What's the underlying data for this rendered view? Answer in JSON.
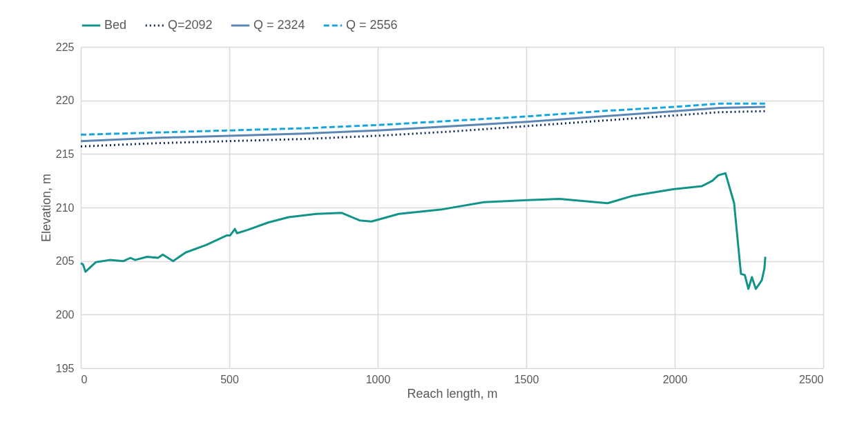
{
  "chart_data": {
    "type": "line",
    "xlabel": "Reach length, m",
    "ylabel": "Elevation, m",
    "xlim": [
      0,
      2500
    ],
    "xticks": [
      0,
      500,
      1000,
      1500,
      2000,
      2500
    ],
    "ylim": [
      195,
      225
    ],
    "yticks": [
      195,
      200,
      205,
      210,
      215,
      220,
      225
    ],
    "grid": true,
    "legend": "top",
    "marker": "none",
    "series": [
      {
        "name": "Bed",
        "color": "#119488",
        "line_style": "solid",
        "x": [
          0,
          7,
          16,
          51,
          97,
          144,
          167,
          183,
          223,
          260,
          276,
          311,
          353,
          422,
          492,
          503,
          519,
          526,
          561,
          631,
          700,
          793,
          879,
          939,
          979,
          1071,
          1211,
          1357,
          1505,
          1612,
          1774,
          1860,
          1994,
          2092,
          2127,
          2146,
          2171,
          2200,
          2223,
          2236,
          2248,
          2260,
          2273,
          2293,
          2302,
          2305
        ],
        "values": [
          204.8,
          204.7,
          204.0,
          204.9,
          205.1,
          205.0,
          205.3,
          205.1,
          205.4,
          205.3,
          205.6,
          205.0,
          205.8,
          206.5,
          207.4,
          207.4,
          208.0,
          207.6,
          207.9,
          208.6,
          209.1,
          209.4,
          209.5,
          208.8,
          208.7,
          209.4,
          209.8,
          210.5,
          210.7,
          210.8,
          210.4,
          211.1,
          211.7,
          212.0,
          212.5,
          213.0,
          213.2,
          210.4,
          203.8,
          203.7,
          202.4,
          203.5,
          202.4,
          203.2,
          204.3,
          205.4
        ]
      },
      {
        "name": "Q=2092",
        "color": "#0d2557",
        "line_style": "dotted",
        "x": [
          0,
          250,
          500,
          750,
          1000,
          1250,
          1500,
          1750,
          2000,
          2150,
          2305
        ],
        "values": [
          215.7,
          216.0,
          216.2,
          216.4,
          216.7,
          217.1,
          217.6,
          218.1,
          218.6,
          218.9,
          219.0
        ]
      },
      {
        "name": "Q = 2324",
        "color": "#5b87b5",
        "line_style": "solid",
        "x": [
          0,
          250,
          500,
          750,
          1000,
          1250,
          1500,
          1750,
          2000,
          2150,
          2305
        ],
        "values": [
          216.2,
          216.5,
          216.7,
          216.9,
          217.2,
          217.6,
          218.0,
          218.5,
          219.0,
          219.3,
          219.4
        ]
      },
      {
        "name": "Q = 2556",
        "color": "#14a6dc",
        "line_style": "dashed",
        "x": [
          0,
          250,
          500,
          750,
          1000,
          1250,
          1500,
          1750,
          2000,
          2150,
          2305
        ],
        "values": [
          216.8,
          217.0,
          217.2,
          217.4,
          217.7,
          218.1,
          218.5,
          219.0,
          219.4,
          219.7,
          219.7
        ]
      }
    ]
  }
}
